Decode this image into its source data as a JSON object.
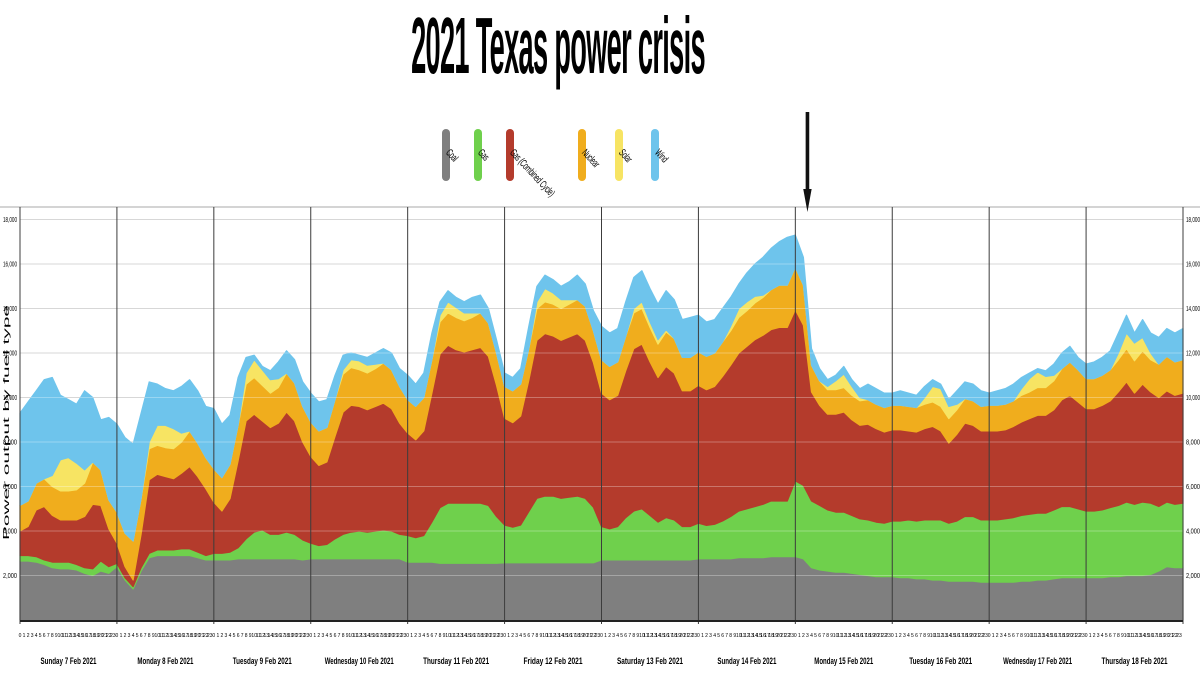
{
  "title": "2021 Texas power crisis",
  "y_axis": {
    "title": "Power output by fuel type",
    "tick_labels": [
      "2,000",
      "4,000",
      "6,000",
      "8,000",
      "10,000",
      "12,000",
      "14,000",
      "16,000",
      "18,000"
    ],
    "tick_values": [
      2000,
      4000,
      6000,
      8000,
      10000,
      12000,
      14000,
      16000,
      18000
    ]
  },
  "x_axis": {
    "hour_labels": [
      "0",
      "1",
      "2",
      "3",
      "4",
      "5",
      "6",
      "7",
      "8",
      "9",
      "10",
      "11",
      "12",
      "13",
      "14",
      "15",
      "16",
      "17",
      "18",
      "19",
      "20",
      "21",
      "22",
      "23"
    ],
    "day_labels": [
      "Sunday 7 Feb 2021",
      "Monday 8 Feb 2021",
      "Tuesday 9 Feb 2021",
      "Wednesday 10 Feb 2021",
      "Thursday 11 Feb 2021",
      "Friday 12 Feb 2021",
      "Saturday 13 Feb 2021",
      "Sunday 14 Feb 2021",
      "Monday 15 Feb 2021",
      "Tuesday 16 Feb 2021",
      "Wednesday 17 Feb 2021",
      "Thursday 18 Feb 2021"
    ]
  },
  "legend": [
    {
      "label": "Coal",
      "color": "#7f7f7f"
    },
    {
      "label": "Gas",
      "color": "#6fd04c"
    },
    {
      "label": "Gas (Combined Cycle)",
      "color": "#b43b2c"
    },
    {
      "label": "Nuclear",
      "color": "#f0ad1d"
    },
    {
      "label": "Solar",
      "color": "#f7e463"
    },
    {
      "label": "Wind",
      "color": "#6ec4ec"
    }
  ],
  "annotation": {
    "shape": "down-arrow",
    "day": "Monday 15 Feb 2021",
    "hour": 3
  },
  "chart_data": {
    "type": "area",
    "stacked": true,
    "grid": true,
    "x_unit": "hours",
    "x_step_hours": 2,
    "total_hours": 288,
    "ylim": [
      0,
      18500
    ],
    "categories": [
      "Sunday 7 Feb 2021",
      "Monday 8 Feb 2021",
      "Tuesday 9 Feb 2021",
      "Wednesday 10 Feb 2021",
      "Thursday 11 Feb 2021",
      "Friday 12 Feb 2021",
      "Saturday 13 Feb 2021",
      "Sunday 14 Feb 2021",
      "Monday 15 Feb 2021",
      "Tuesday 16 Feb 2021",
      "Wednesday 17 Feb 2021",
      "Thursday 18 Feb 2021"
    ],
    "series": [
      {
        "name": "Coal",
        "color": "#7f7f7f",
        "values": [
          2650,
          2650,
          2600,
          2500,
          2350,
          2300,
          2300,
          2250,
          2100,
          2000,
          2200,
          2100,
          2400,
          1800,
          1400,
          2200,
          2800,
          2900,
          2900,
          2900,
          2900,
          2900,
          2800,
          2700,
          2700,
          2700,
          2700,
          2750,
          2750,
          2750,
          2750,
          2750,
          2750,
          2750,
          2750,
          2700,
          2750,
          2750,
          2750,
          2750,
          2750,
          2750,
          2750,
          2750,
          2750,
          2750,
          2750,
          2750,
          2600,
          2600,
          2600,
          2600,
          2550,
          2550,
          2550,
          2550,
          2550,
          2550,
          2550,
          2550,
          2570,
          2570,
          2570,
          2570,
          2570,
          2570,
          2570,
          2570,
          2570,
          2570,
          2570,
          2570,
          2700,
          2700,
          2700,
          2700,
          2700,
          2700,
          2700,
          2700,
          2700,
          2700,
          2700,
          2700,
          2750,
          2750,
          2750,
          2750,
          2750,
          2800,
          2800,
          2800,
          2800,
          2850,
          2850,
          2850,
          2850,
          2750,
          2350,
          2250,
          2200,
          2150,
          2150,
          2100,
          2050,
          2000,
          1950,
          1950,
          1950,
          1900,
          1900,
          1850,
          1850,
          1800,
          1800,
          1750,
          1750,
          1750,
          1750,
          1700,
          1700,
          1700,
          1700,
          1700,
          1750,
          1750,
          1800,
          1800,
          1850,
          1900,
          1900,
          1900,
          1900,
          1900,
          1900,
          1950,
          1950,
          2000,
          2000,
          2000,
          2050,
          2200,
          2400,
          2350,
          2350
        ]
      },
      {
        "name": "Gas",
        "color": "#6fd04c",
        "values": [
          250,
          250,
          250,
          200,
          250,
          300,
          300,
          250,
          250,
          300,
          450,
          300,
          150,
          100,
          100,
          150,
          200,
          250,
          250,
          250,
          300,
          300,
          250,
          200,
          300,
          300,
          350,
          500,
          900,
          1200,
          1300,
          1100,
          1100,
          1200,
          1100,
          900,
          700,
          600,
          650,
          900,
          1100,
          1200,
          1250,
          1200,
          1250,
          1300,
          1250,
          1100,
          1200,
          1100,
          1200,
          1800,
          2500,
          2700,
          2700,
          2700,
          2700,
          2700,
          2600,
          2100,
          1700,
          1600,
          1700,
          2300,
          2900,
          3000,
          3000,
          2900,
          2950,
          3000,
          2900,
          2500,
          1500,
          1400,
          1500,
          1900,
          2200,
          2300,
          2000,
          1700,
          1900,
          1800,
          1500,
          1500,
          1600,
          1500,
          1550,
          1700,
          1900,
          2100,
          2200,
          2300,
          2400,
          2500,
          2500,
          2500,
          3400,
          3300,
          3000,
          2900,
          2750,
          2700,
          2700,
          2600,
          2500,
          2500,
          2450,
          2400,
          2500,
          2550,
          2600,
          2600,
          2650,
          2700,
          2700,
          2600,
          2700,
          2900,
          2900,
          2800,
          2800,
          2800,
          2850,
          2900,
          2950,
          3000,
          3000,
          3000,
          3100,
          3200,
          3200,
          3100,
          3000,
          3000,
          3050,
          3100,
          3200,
          3300,
          3200,
          3300,
          3200,
          2900,
          2900,
          2850,
          2900
        ]
      },
      {
        "name": "Gas (Combined Cycle)",
        "color": "#b43b2c",
        "values": [
          1100,
          1300,
          2100,
          2400,
          2100,
          1900,
          1900,
          2000,
          2300,
          2900,
          2500,
          1700,
          900,
          500,
          300,
          1500,
          3300,
          3400,
          3300,
          3200,
          3400,
          3700,
          3400,
          3000,
          2300,
          1900,
          2400,
          3900,
          5300,
          5300,
          4900,
          4800,
          5000,
          5400,
          5100,
          4400,
          3900,
          3600,
          3700,
          4600,
          5500,
          5700,
          5600,
          5500,
          5600,
          5700,
          5500,
          5000,
          4600,
          4400,
          4700,
          5800,
          6900,
          7100,
          6900,
          6800,
          6900,
          7000,
          6700,
          5900,
          4800,
          4700,
          4900,
          5900,
          7100,
          7300,
          7200,
          7100,
          7200,
          7300,
          7100,
          6500,
          6000,
          5800,
          5900,
          6600,
          7300,
          7400,
          6900,
          6500,
          6800,
          6600,
          6100,
          6100,
          6200,
          6100,
          6200,
          6500,
          6800,
          7100,
          7300,
          7500,
          7600,
          7700,
          7800,
          7800,
          7700,
          7200,
          4900,
          4500,
          4300,
          4400,
          4500,
          4300,
          4200,
          4300,
          4200,
          4100,
          4100,
          4100,
          4000,
          4000,
          4100,
          4200,
          4000,
          3600,
          3900,
          4200,
          4100,
          4000,
          4000,
          4000,
          4000,
          4100,
          4200,
          4300,
          4400,
          4400,
          4500,
          4800,
          5000,
          4800,
          4600,
          4600,
          4700,
          4800,
          5100,
          5400,
          5000,
          5300,
          5000,
          4900,
          5000,
          4900,
          4950
        ]
      },
      {
        "name": "Nuclear",
        "color": "#f0ad1d",
        "values": [
          1150,
          1150,
          1200,
          1250,
          1300,
          1300,
          1300,
          1350,
          1500,
          1900,
          1600,
          1300,
          1400,
          1500,
          1750,
          1600,
          1400,
          1300,
          1300,
          1350,
          1400,
          1600,
          1500,
          1400,
          1500,
          1500,
          1550,
          1600,
          1650,
          1650,
          1600,
          1550,
          1600,
          1750,
          1700,
          1600,
          1550,
          1550,
          1550,
          1650,
          1700,
          1700,
          1650,
          1650,
          1700,
          1800,
          1750,
          1650,
          1500,
          1500,
          1500,
          1500,
          1450,
          1450,
          1450,
          1400,
          1450,
          1550,
          1500,
          1450,
          1430,
          1430,
          1430,
          1430,
          1430,
          1430,
          1430,
          1430,
          1480,
          1530,
          1530,
          1430,
          1500,
          1500,
          1500,
          1550,
          1600,
          1600,
          1550,
          1500,
          1550,
          1550,
          1500,
          1500,
          1500,
          1500,
          1500,
          1550,
          1550,
          1600,
          1600,
          1650,
          1700,
          1800,
          1900,
          1900,
          1900,
          1800,
          1200,
          1100,
          1100,
          1100,
          1100,
          1100,
          1100,
          1100,
          1100,
          1100,
          1100,
          1100,
          1100,
          1100,
          1100,
          1100,
          1100,
          1100,
          1100,
          1100,
          1100,
          1100,
          1150,
          1150,
          1150,
          1150,
          1200,
          1200,
          1250,
          1250,
          1300,
          1400,
          1500,
          1450,
          1350,
          1350,
          1350,
          1400,
          1450,
          1500,
          1450,
          1500,
          1450,
          1500,
          1550,
          1500,
          1500
        ]
      },
      {
        "name": "Solar",
        "color": "#f7e463",
        "values": [
          0,
          0,
          0,
          0,
          500,
          1400,
          1500,
          1200,
          600,
          0,
          0,
          0,
          0,
          0,
          0,
          0,
          300,
          900,
          1000,
          900,
          400,
          0,
          0,
          0,
          0,
          0,
          0,
          0,
          500,
          800,
          700,
          600,
          400,
          0,
          0,
          0,
          0,
          0,
          0,
          0,
          200,
          350,
          400,
          350,
          200,
          0,
          0,
          0,
          0,
          0,
          0,
          0,
          300,
          500,
          450,
          350,
          200,
          0,
          0,
          0,
          0,
          0,
          0,
          0,
          300,
          600,
          500,
          400,
          200,
          0,
          0,
          0,
          0,
          0,
          0,
          0,
          200,
          300,
          250,
          200,
          100,
          0,
          0,
          0,
          0,
          0,
          0,
          0,
          200,
          400,
          400,
          300,
          100,
          0,
          0,
          0,
          0,
          0,
          0,
          0,
          150,
          400,
          600,
          400,
          150,
          0,
          0,
          0,
          0,
          0,
          0,
          0,
          300,
          700,
          800,
          550,
          250,
          0,
          0,
          0,
          0,
          0,
          0,
          0,
          300,
          600,
          700,
          500,
          250,
          0,
          0,
          0,
          0,
          0,
          0,
          0,
          300,
          700,
          800,
          600,
          300,
          0,
          0,
          0,
          0
        ]
      },
      {
        "name": "Wind",
        "color": "#6ec4ec",
        "values": [
          4150,
          4450,
          4150,
          4450,
          4400,
          2900,
          2600,
          2650,
          3550,
          2900,
          2250,
          3700,
          3950,
          4300,
          4350,
          3850,
          2700,
          1850,
          1650,
          1700,
          2100,
          2300,
          2350,
          2300,
          2700,
          2400,
          2200,
          2150,
          700,
          200,
          150,
          400,
          750,
          1000,
          1050,
          1100,
          1300,
          1300,
          1250,
          1100,
          650,
          300,
          250,
          350,
          500,
          650,
          750,
          800,
          1100,
          1000,
          1100,
          1200,
          600,
          500,
          450,
          500,
          700,
          800,
          650,
          600,
          600,
          600,
          700,
          1000,
          700,
          600,
          600,
          600,
          800,
          1100,
          1000,
          900,
          1500,
          1500,
          1500,
          1550,
          1400,
          1400,
          1500,
          1600,
          1750,
          1750,
          1700,
          1800,
          1650,
          1550,
          1500,
          1500,
          1300,
          1100,
          1300,
          1450,
          1700,
          1850,
          1950,
          2150,
          1450,
          1250,
          750,
          550,
          300,
          250,
          350,
          300,
          400,
          700,
          700,
          650,
          550,
          650,
          600,
          550,
          500,
          300,
          200,
          300,
          600,
          750,
          750,
          700,
          550,
          650,
          700,
          750,
          500,
          250,
          150,
          250,
          500,
          700,
          700,
          550,
          650,
          750,
          800,
          850,
          900,
          800,
          450,
          800,
          900,
          1200,
          1250,
          1300,
          1400
        ]
      }
    ]
  }
}
